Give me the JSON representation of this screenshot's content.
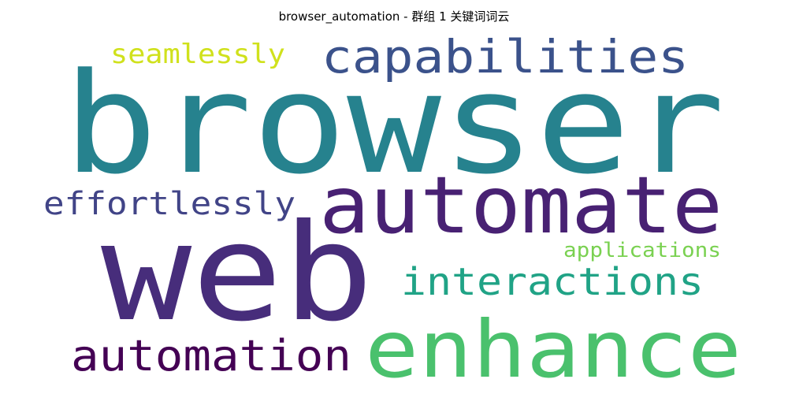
{
  "title": "browser_automation - 群组 1 关键词词云",
  "words": [
    {
      "text": "browser",
      "color": "#26828e"
    },
    {
      "text": "web",
      "color": "#472d7b"
    },
    {
      "text": "automate",
      "color": "#482173"
    },
    {
      "text": "enhance",
      "color": "#4ac16d"
    },
    {
      "text": "capabilities",
      "color": "#3b528b"
    },
    {
      "text": "interactions",
      "color": "#20a386"
    },
    {
      "text": "automation",
      "color": "#440154"
    },
    {
      "text": "effortlessly",
      "color": "#414487"
    },
    {
      "text": "seamlessly",
      "color": "#d0e11c"
    },
    {
      "text": "applications",
      "color": "#7ad151"
    }
  ]
}
